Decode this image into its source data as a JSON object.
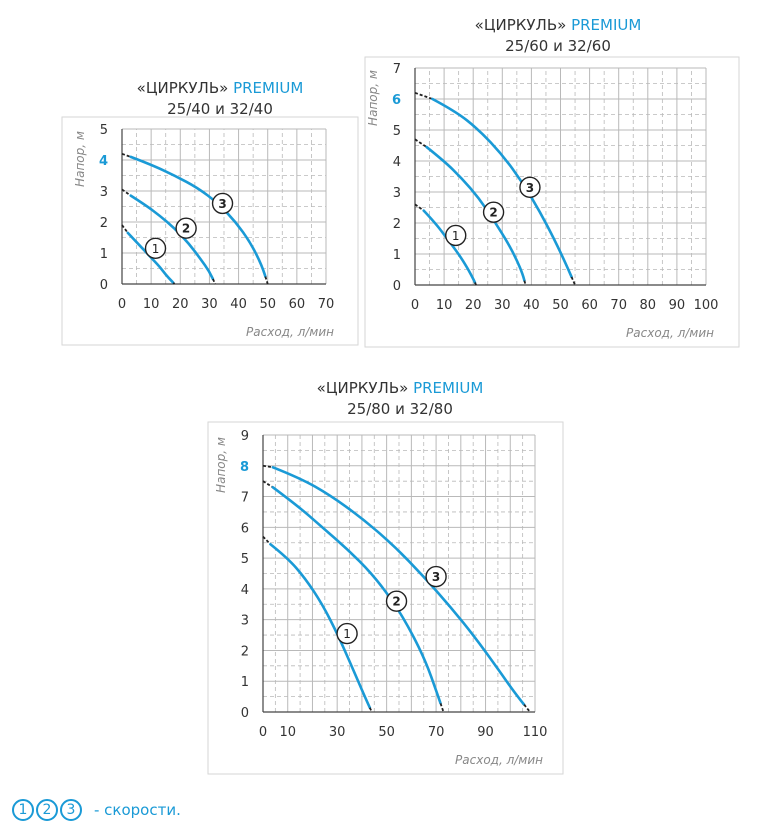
{
  "charts": [
    {
      "title_prefix": "«ЦИРКУЛЬ» ",
      "title_brand": "PREMIUM",
      "title_line2": "25/40 и 32/40"
    },
    {
      "title_prefix": "«ЦИРКУЛЬ» ",
      "title_brand": "PREMIUM",
      "title_line2": "25/60 и 32/60"
    },
    {
      "title_prefix": "«ЦИРКУЛЬ» ",
      "title_brand": "PREMIUM",
      "title_line2": "25/80 и 32/80"
    }
  ],
  "legend": {
    "badges": [
      "1",
      "2",
      "3"
    ],
    "text": "- скорости."
  },
  "colors": {
    "curve": "#1a9ad6",
    "highlight_tick": "#1a9ad6",
    "grid": "#b9b9b9",
    "axis_text": "#333333"
  },
  "chart_data": [
    {
      "type": "line",
      "title": "«ЦИРКУЛЬ» PREMIUM 25/40 и 32/40",
      "xlabel": "Расход, л/мин",
      "ylabel": "Напор, м",
      "xlim": [
        0,
        70
      ],
      "ylim": [
        0,
        5
      ],
      "xticks": [
        "0",
        "10",
        "20",
        "30",
        "40",
        "50",
        "60",
        "70"
      ],
      "yticks": [
        "0",
        "1",
        "2",
        "3",
        "4",
        "5"
      ],
      "highlight_ytick": "4",
      "grid": true,
      "series": [
        {
          "name": "1",
          "dash": [
            [
              0,
              1.9
            ],
            [
              2,
              1.65
            ]
          ],
          "x": [
            2,
            5,
            8,
            11,
            13,
            15,
            17,
            18
          ],
          "y": [
            1.65,
            1.35,
            1.05,
            0.75,
            0.55,
            0.3,
            0.1,
            0.0
          ],
          "label_at": [
            11.5,
            1.15
          ]
        },
        {
          "name": "2",
          "dash": [
            [
              0,
              3.05
            ],
            [
              3,
              2.85
            ]
          ],
          "x": [
            3,
            8,
            13,
            18,
            23,
            27,
            30,
            32
          ],
          "y": [
            2.85,
            2.55,
            2.2,
            1.8,
            1.3,
            0.8,
            0.4,
            0.0
          ],
          "label_at": [
            22,
            1.8
          ]
        },
        {
          "name": "3",
          "dash": [
            [
              0,
              4.2
            ],
            [
              3,
              4.1
            ]
          ],
          "x": [
            3,
            10,
            18,
            26,
            33,
            39,
            44,
            48,
            50
          ],
          "y": [
            4.1,
            3.85,
            3.5,
            3.1,
            2.6,
            2.0,
            1.35,
            0.6,
            0.0
          ],
          "label_at": [
            34.5,
            2.6
          ]
        }
      ]
    },
    {
      "type": "line",
      "title": "«ЦИРКУЛЬ» PREMIUM 25/60 и 32/60",
      "xlabel": "Расход, л/мин",
      "ylabel": "Напор, м",
      "xlim": [
        0,
        100
      ],
      "ylim": [
        0,
        7
      ],
      "xticks": [
        "0",
        "10",
        "20",
        "30",
        "40",
        "50",
        "60",
        "70",
        "80",
        "90",
        "100"
      ],
      "yticks": [
        "0",
        "1",
        "2",
        "3",
        "4",
        "5",
        "6",
        "7"
      ],
      "highlight_ytick": "6",
      "grid": true,
      "series": [
        {
          "name": "1",
          "dash": [
            [
              0,
              2.6
            ],
            [
              3,
              2.4
            ]
          ],
          "x": [
            3,
            7,
            11,
            15,
            18,
            20,
            21
          ],
          "y": [
            2.4,
            2.0,
            1.5,
            1.0,
            0.55,
            0.2,
            0.0
          ],
          "label_at": [
            14,
            1.6
          ]
        },
        {
          "name": "2",
          "dash": [
            [
              0,
              4.7
            ],
            [
              4,
              4.45
            ]
          ],
          "x": [
            4,
            10,
            16,
            22,
            27,
            32,
            35,
            37,
            38
          ],
          "y": [
            4.45,
            4.0,
            3.45,
            2.8,
            2.1,
            1.35,
            0.8,
            0.35,
            0.0
          ],
          "label_at": [
            27,
            2.35
          ]
        },
        {
          "name": "3",
          "dash": [
            [
              0,
              6.2
            ],
            [
              6,
              6.0
            ]
          ],
          "x": [
            6,
            14,
            22,
            30,
            37,
            43,
            48,
            52,
            55
          ],
          "y": [
            6.0,
            5.6,
            5.0,
            4.2,
            3.3,
            2.35,
            1.45,
            0.65,
            0.0
          ],
          "label_at": [
            39.5,
            3.15
          ]
        }
      ]
    },
    {
      "type": "line",
      "title": "«ЦИРКУЛЬ» PREMIUM 25/80 и 32/80",
      "xlabel": "Расход, л/мин",
      "ylabel": "Напор, м",
      "xlim": [
        0,
        110
      ],
      "ylim": [
        0,
        9
      ],
      "xticks": [
        "0",
        "10",
        "30",
        "50",
        "70",
        "90",
        "110"
      ],
      "xtick_values": [
        0,
        10,
        30,
        50,
        70,
        90,
        110
      ],
      "yticks": [
        "0",
        "1",
        "2",
        "3",
        "4",
        "5",
        "6",
        "7",
        "8",
        "9"
      ],
      "highlight_ytick": "8",
      "grid": true,
      "series": [
        {
          "name": "1",
          "dash": [
            [
              0,
              5.7
            ],
            [
              3,
              5.45
            ]
          ],
          "x": [
            3,
            10,
            17,
            24,
            30,
            35,
            39,
            42,
            44
          ],
          "y": [
            5.45,
            5.0,
            4.35,
            3.5,
            2.55,
            1.65,
            0.9,
            0.35,
            0.0
          ],
          "label_at": [
            34,
            2.55
          ]
        },
        {
          "name": "2",
          "dash": [
            [
              0,
              7.5
            ],
            [
              4,
              7.3
            ]
          ],
          "x": [
            4,
            14,
            24,
            34,
            44,
            53,
            60,
            66,
            70,
            73
          ],
          "y": [
            7.3,
            6.7,
            6.0,
            5.3,
            4.5,
            3.55,
            2.6,
            1.6,
            0.7,
            0.0
          ],
          "label_at": [
            54,
            3.6
          ]
        },
        {
          "name": "3",
          "dash": [
            [
              0,
              8.0
            ],
            [
              4,
              7.95
            ]
          ],
          "x": [
            4,
            15,
            27,
            40,
            53,
            65,
            76,
            86,
            95,
            102,
            108
          ],
          "y": [
            7.95,
            7.6,
            7.05,
            6.3,
            5.4,
            4.4,
            3.4,
            2.4,
            1.4,
            0.6,
            0.0
          ],
          "label_at": [
            70,
            4.4
          ]
        }
      ]
    }
  ]
}
